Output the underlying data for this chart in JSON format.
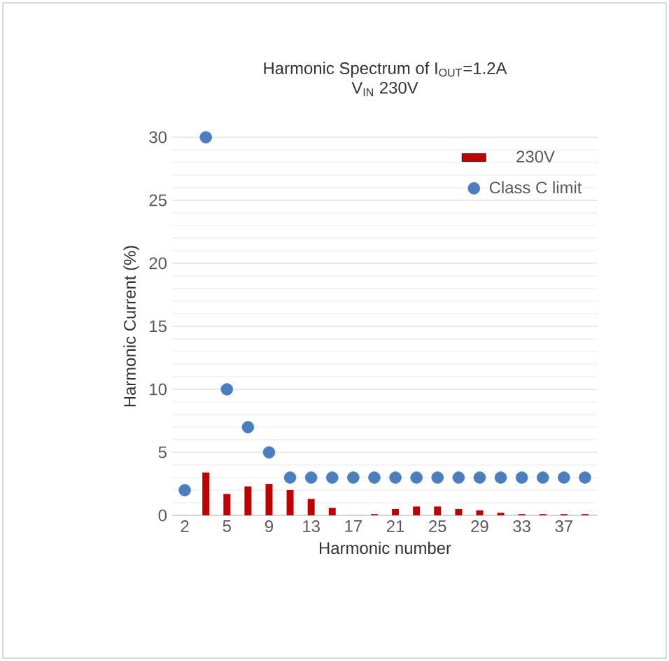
{
  "chart_data": {
    "type": "bar",
    "title": "Harmonic Spectrum of I$_{OUT}$=1.2A",
    "subtitle": "V$_{IN}$ 230V",
    "xlabel": "Harmonic number",
    "ylabel": "Harmonic Current (%)",
    "categories": [
      "2",
      null,
      "5",
      null,
      "9",
      null,
      "13",
      null,
      "17",
      null,
      "21",
      null,
      "25",
      null,
      "29",
      null,
      "33",
      null,
      "37",
      null
    ],
    "series": [
      {
        "name": "230V",
        "type": "bar",
        "color": "#c00000",
        "values": [
          0,
          3.4,
          1.7,
          2.3,
          2.5,
          2.0,
          1.3,
          0.6,
          0,
          0.1,
          0.5,
          0.7,
          0.7,
          0.5,
          0.4,
          0.2,
          0.1,
          0.1,
          0.1,
          0.1
        ]
      },
      {
        "name": "Class C limit",
        "type": "scatter",
        "color": "#4a7ebf",
        "values": [
          2,
          30,
          10,
          7,
          5,
          3,
          3,
          3,
          3,
          3,
          3,
          3,
          3,
          3,
          3,
          3,
          3,
          3,
          3,
          3
        ]
      }
    ],
    "ylim": [
      0,
      30
    ],
    "yticks": [
      0,
      5,
      10,
      15,
      20,
      25,
      30
    ],
    "grid": "y",
    "legend": "top right"
  }
}
